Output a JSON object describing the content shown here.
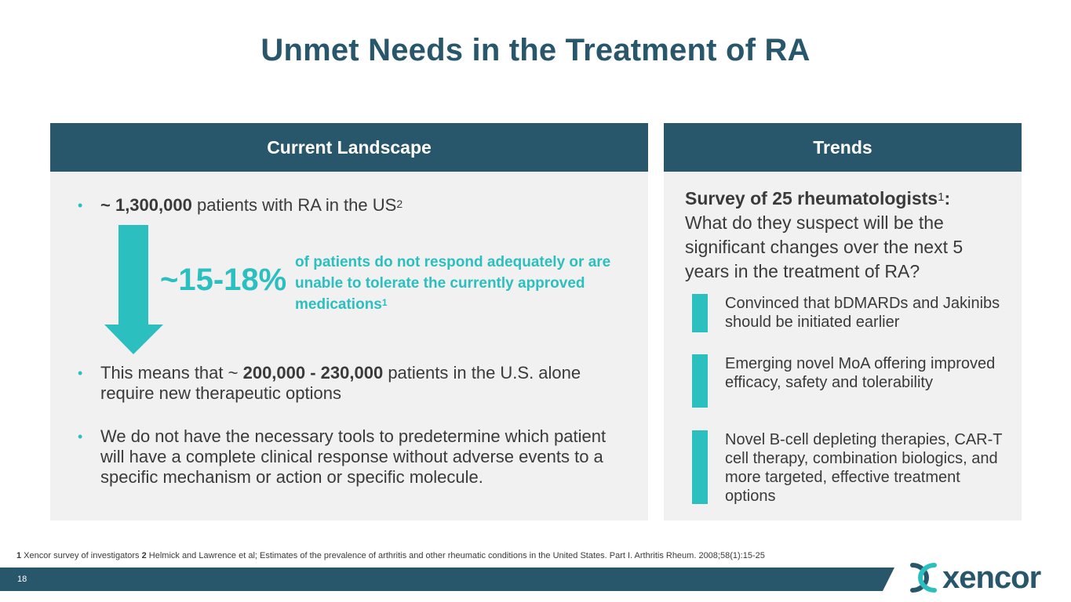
{
  "slide": {
    "title": "Unmet Needs in the Treatment of RA",
    "page_number": "18"
  },
  "left_panel": {
    "header": "Current Landscape",
    "bullet1": {
      "bold": "~ 1,300,000",
      "text": " patients with RA in the US",
      "sup": "2"
    },
    "highlight": {
      "percent": "~15-18%",
      "text": "of patients do not respond adequately or are unable to tolerate the currently approved medications",
      "sup": "1"
    },
    "bullet2": {
      "before": "This means that ~ ",
      "bold": "200,000 - 230,000",
      "after": " patients in the U.S. alone require new therapeutic options"
    },
    "bullet3": "We do not have the necessary tools to predetermine which patient will have a complete clinical response without adverse events to a specific mechanism or action or specific molecule.",
    "bullet_glyph": "•"
  },
  "right_panel": {
    "header": "Trends",
    "survey_bold": "Survey of 25 rheumatologists",
    "survey_sup": "1",
    "survey_colon": ":",
    "survey_question": "What do they suspect will be the significant changes over the next 5 years in the treatment of RA?",
    "items": [
      "Convinced that bDMARDs and Jakinibs should be initiated earlier",
      "Emerging novel MoA offering improved efficacy, safety and tolerability",
      "Novel B-cell depleting therapies, CAR-T cell therapy, combination biologics, and more targeted, effective treatment options"
    ]
  },
  "footnote": {
    "n1": "1",
    "t1": " Xencor survey of investigators ",
    "n2": "2",
    "t2": " Helmick and Lawrence et al; Estimates of the prevalence of arthritis and other rheumatic conditions in the United States. Part I. Arthritis Rheum. 2008;58(1):15-25"
  },
  "logo": {
    "text": "xencor",
    "icon": "xencor-logo-icon"
  },
  "colors": {
    "navy": "#28566b",
    "teal": "#2bbfbf",
    "panel_bg": "#f1f1f1",
    "text": "#3a3a3a"
  }
}
